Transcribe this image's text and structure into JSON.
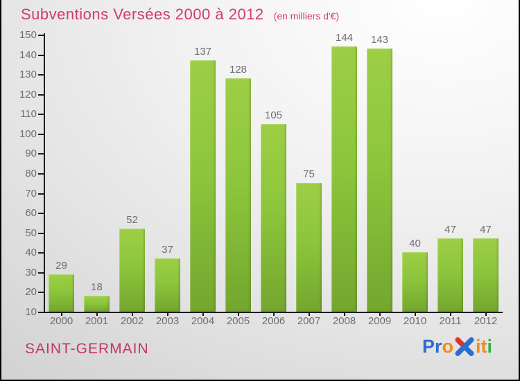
{
  "header": {
    "title": "Subventions Versées 2000 à 2012",
    "subtitle": "(en milliers d'€)"
  },
  "chart_data": {
    "type": "bar",
    "categories": [
      "2000",
      "2001",
      "2002",
      "2003",
      "2004",
      "2005",
      "2006",
      "2007",
      "2008",
      "2009",
      "2010",
      "2011",
      "2012"
    ],
    "values": [
      29,
      18,
      52,
      37,
      137,
      128,
      105,
      75,
      144,
      143,
      40,
      47,
      47
    ],
    "title": "Subventions Versées 2000 à 2012",
    "subtitle": "(en milliers d'€)",
    "xlabel": "",
    "ylabel": "",
    "ylim": [
      10,
      150
    ],
    "ytick_step": 10,
    "grid": false,
    "legend": null,
    "value_labels": true
  },
  "footer": {
    "location": "SAINT-GERMAIN",
    "brand_name": "Proxiti",
    "brand_letters": [
      {
        "text": "P",
        "color": "#2a6ed2"
      },
      {
        "text": "r",
        "color": "#2a6ed2"
      },
      {
        "text": "o",
        "color": "#f5891d"
      },
      {
        "text": "x",
        "color": "#2a6ed2",
        "accent": "#e5332a",
        "icon": true
      },
      {
        "text": "i",
        "color": "#f5891d"
      },
      {
        "text": "t",
        "color": "#f5891d"
      },
      {
        "text": "i",
        "color": "#2fb44b"
      }
    ]
  },
  "colors": {
    "title_pink": "#d23a6e",
    "location_pink": "#c23568",
    "axis": "#1c1c1c",
    "text_grey": "#6e6e6e",
    "bar_top": "#9dce45",
    "bar_bottom": "#74a62e",
    "border": "#000000"
  }
}
